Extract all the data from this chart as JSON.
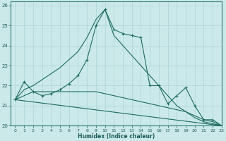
{
  "xlabel": "Humidex (Indice chaleur)",
  "background_color": "#cce9e9",
  "grid_color": "#aad4d4",
  "line_color": "#1a6b60",
  "xlim": [
    -0.5,
    23
  ],
  "ylim": [
    20,
    26.2
  ],
  "yticks": [
    20,
    21,
    22,
    23,
    24,
    25,
    26
  ],
  "xticks": [
    0,
    1,
    2,
    3,
    4,
    5,
    6,
    7,
    8,
    9,
    10,
    11,
    12,
    13,
    14,
    15,
    16,
    17,
    18,
    19,
    20,
    21,
    22,
    23
  ],
  "lines": [
    {
      "x": [
        0,
        1,
        2,
        3,
        4,
        5,
        6,
        7,
        8,
        9,
        10,
        11,
        12,
        13,
        14,
        15,
        16,
        17,
        18,
        19,
        20,
        21,
        22,
        23
      ],
      "y": [
        21.3,
        22.2,
        21.7,
        21.5,
        21.6,
        21.8,
        22.1,
        22.5,
        23.3,
        25.0,
        25.8,
        24.8,
        24.6,
        24.5,
        24.4,
        22.0,
        22.0,
        21.1,
        21.5,
        21.9,
        21.0,
        20.3,
        20.3,
        20.0
      ],
      "has_marker": true,
      "marker": "+"
    },
    {
      "x": [
        0,
        1,
        2,
        3,
        4,
        5,
        6,
        7,
        8,
        9,
        10,
        11,
        12,
        13,
        14,
        15,
        16,
        17,
        18,
        19,
        20,
        21,
        22,
        23
      ],
      "y": [
        21.3,
        21.8,
        22.0,
        22.3,
        22.6,
        22.9,
        23.3,
        23.7,
        24.4,
        25.3,
        25.8,
        24.5,
        24.0,
        23.5,
        23.0,
        22.5,
        22.0,
        21.5,
        21.0,
        20.7,
        20.4,
        20.2,
        20.1,
        20.0
      ],
      "has_marker": false
    },
    {
      "x": [
        0,
        1,
        2,
        3,
        4,
        5,
        6,
        7,
        8,
        9,
        10,
        11,
        12,
        13,
        14,
        15,
        16,
        17,
        18,
        19,
        20,
        21,
        22,
        23
      ],
      "y": [
        21.3,
        21.5,
        21.7,
        21.7,
        21.7,
        21.7,
        21.7,
        21.7,
        21.7,
        21.7,
        21.6,
        21.5,
        21.4,
        21.3,
        21.2,
        21.1,
        21.0,
        20.9,
        20.8,
        20.7,
        20.5,
        20.3,
        20.2,
        20.0
      ],
      "has_marker": false
    },
    {
      "x": [
        0,
        23
      ],
      "y": [
        21.3,
        20.0
      ],
      "has_marker": false
    }
  ]
}
